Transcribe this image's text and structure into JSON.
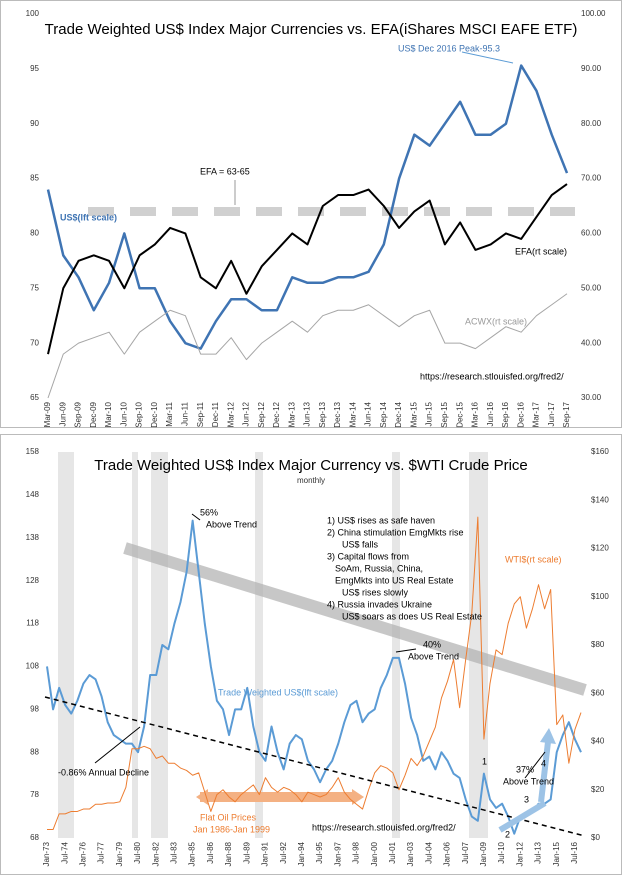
{
  "chart_data": [
    {
      "type": "line",
      "title": "Trade Weighted US$ Index Major Currencies vs. EFA(iShares MSCI EAFE ETF)",
      "categories": [
        "Mar-09",
        "Jun-09",
        "Sep-09",
        "Dec-09",
        "Mar-10",
        "Jun-10",
        "Sep-10",
        "Dec-10",
        "Mar-11",
        "Jun-11",
        "Sep-11",
        "Dec-11",
        "Mar-12",
        "Jun-12",
        "Sep-12",
        "Dec-12",
        "Mar-13",
        "Jun-13",
        "Sep-13",
        "Dec-13",
        "Mar-14",
        "Jun-14",
        "Sep-14",
        "Dec-14",
        "Mar-15",
        "Jun-15",
        "Sep-15",
        "Dec-15",
        "Mar-16",
        "Jun-16",
        "Sep-16",
        "Dec-16",
        "Mar-17",
        "Jun-17",
        "Sep-17"
      ],
      "series": [
        {
          "name": "US$",
          "color": "#3f74b3",
          "width": 2.5,
          "values": [
            84,
            78,
            76,
            73,
            75.5,
            80,
            75,
            75,
            72,
            70,
            69.5,
            72,
            74,
            74,
            73,
            73,
            76,
            75.5,
            75.5,
            76,
            76,
            76.5,
            79,
            85,
            89,
            88,
            90,
            92,
            89,
            89,
            90,
            95.3,
            93,
            89,
            85.5
          ]
        },
        {
          "name": "EFA",
          "color": "#000000",
          "width": 2,
          "axis": "y2",
          "values": [
            38,
            50,
            55,
            56,
            55,
            50,
            56,
            58,
            61,
            60,
            52,
            50,
            55,
            49,
            54,
            57,
            60,
            58,
            65,
            67,
            67,
            68,
            65,
            61,
            64,
            66,
            58,
            62,
            57,
            58,
            60,
            59,
            63,
            67,
            69
          ]
        },
        {
          "name": "ACWX",
          "color": "#a6a6a6",
          "width": 1,
          "axis": "y2",
          "values": [
            30,
            38,
            40,
            41,
            42,
            38,
            42,
            44,
            46,
            45,
            38,
            38,
            41,
            37,
            40,
            42,
            44,
            42,
            45,
            46,
            46,
            47,
            45,
            43,
            45,
            46,
            40,
            40,
            39,
            41,
            43,
            42,
            45,
            47,
            49
          ]
        }
      ],
      "ylim": [
        65,
        100
      ],
      "yticks": [
        65,
        70,
        75,
        80,
        85,
        90,
        95,
        100
      ],
      "y2lim": [
        30,
        100
      ],
      "y2ticks": [
        {
          "value": 30,
          "label": "30.00"
        },
        {
          "value": 40,
          "label": "40.00"
        },
        {
          "value": 50,
          "label": "50.00"
        },
        {
          "value": 60,
          "label": "60.00"
        },
        {
          "value": 70,
          "label": "70.00"
        },
        {
          "value": 80,
          "label": "80.00"
        },
        {
          "value": 90,
          "label": "90.00"
        },
        {
          "value": 100,
          "label": "100.00"
        }
      ],
      "reference_line": {
        "value": 64,
        "axis": "y2",
        "color": "#d0d0d0"
      },
      "annotations": [
        "US$ Dec 2016 Peak-95.3",
        "EFA = 63-65",
        "US$(lft scale)",
        "EFA(rt scale)",
        "ACWX(rt scale)",
        "https://research.stlouisfed.org/fred2/"
      ]
    },
    {
      "type": "line",
      "title": "Trade Weighted US$ Index Major Currency vs. $WTI Crude Price",
      "subtitle": "monthly",
      "categories": [
        "Jan-73",
        null,
        null,
        "Jul-74",
        null,
        null,
        "Jan-76",
        null,
        null,
        "Jul-77",
        null,
        null,
        "Jan-79",
        null,
        null,
        "Jul-80",
        null,
        null,
        "Jan-82",
        null,
        null,
        "Jul-83",
        null,
        null,
        "Jan-85",
        null,
        null,
        "Jul-86",
        null,
        null,
        "Jan-88",
        null,
        null,
        "Jul-89",
        null,
        null,
        "Jan-91",
        null,
        null,
        "Jul-92",
        null,
        null,
        "Jan-94",
        null,
        null,
        "Jul-95",
        null,
        null,
        "Jan-97",
        null,
        null,
        "Jul-98",
        null,
        null,
        "Jan-00",
        null,
        null,
        "Jul-01",
        null,
        null,
        "Jan-03",
        null,
        null,
        "Jul-04",
        null,
        null,
        "Jan-06",
        null,
        null,
        "Jul-07",
        null,
        null,
        "Jan-09",
        null,
        null,
        "Jul-10",
        null,
        null,
        "Jan-12",
        null,
        null,
        "Jul-13",
        null,
        null,
        "Jan-15",
        null,
        null,
        "Jul-16",
        null
      ],
      "series": [
        {
          "name": "Trade Weighted US$",
          "color": "#5b9bd5",
          "width": 2,
          "values": [
            108,
            98,
            103,
            99,
            97,
            100,
            104,
            106,
            105,
            101,
            95,
            92,
            91,
            90,
            90,
            88,
            94,
            106,
            106,
            113,
            112,
            118,
            123,
            130,
            142,
            130,
            118,
            108,
            100,
            98,
            92,
            98,
            98,
            103,
            94,
            88,
            86,
            94,
            88,
            84,
            90,
            92,
            91,
            86,
            84,
            81,
            84,
            86,
            90,
            95,
            99,
            100,
            95,
            97,
            98,
            103,
            106,
            110,
            110,
            104,
            96,
            92,
            86,
            87,
            84,
            88,
            86,
            83,
            82,
            77,
            73,
            72,
            83,
            77,
            75,
            76,
            73,
            69,
            73,
            74,
            74,
            76,
            76,
            77,
            88,
            92,
            95,
            91,
            88
          ]
        },
        {
          "name": "WTI$",
          "color": "#ed7d31",
          "width": 1,
          "axis": "y2",
          "values": [
            3.5,
            3.5,
            10,
            10,
            11,
            11,
            12,
            12,
            14,
            14,
            14.5,
            14.5,
            15,
            21,
            37,
            37,
            38,
            37,
            33,
            34,
            31,
            31,
            29,
            28,
            26,
            27,
            19,
            11,
            18,
            20,
            17,
            15,
            18,
            20,
            22,
            18,
            25,
            21,
            19,
            21,
            20,
            18,
            15,
            19,
            18,
            17,
            18,
            21,
            25,
            19,
            16,
            14,
            12,
            20,
            27,
            30,
            29,
            27,
            20,
            26,
            33,
            30,
            34,
            40,
            46,
            58,
            65,
            74,
            54,
            74,
            93,
            133,
            41,
            64,
            78,
            76,
            89,
            97,
            100,
            87,
            95,
            105,
            95,
            103,
            47,
            51,
            31,
            45,
            52
          ]
        }
      ],
      "ylim": [
        68,
        158
      ],
      "yticks": [
        68,
        78,
        88,
        98,
        108,
        118,
        128,
        138,
        148,
        158
      ],
      "y2lim": [
        0,
        160
      ],
      "y2ticks": [
        {
          "value": 0,
          "label": "$0"
        },
        {
          "value": 20,
          "label": "$20"
        },
        {
          "value": 40,
          "label": "$40"
        },
        {
          "value": 60,
          "label": "$60"
        },
        {
          "value": 80,
          "label": "$80"
        },
        {
          "value": 100,
          "label": "$100"
        },
        {
          "value": 120,
          "label": "$120"
        },
        {
          "value": 140,
          "label": "$140"
        },
        {
          "value": 160,
          "label": "$160"
        }
      ],
      "annotations": [
        "56%",
        "Above Trend",
        "40%",
        "Above Trend",
        "37%",
        "Above Trend",
        "1) US$ rises as safe haven",
        "2) China stimulation EmgMkts rise",
        "US$ falls",
        "3) Capital flows from",
        "SoAm, Russia, China,",
        "EmgMkts into US Real Estate",
        "US$ rises slowly",
        "4) Russia invades Ukraine",
        "US$ soars as does US Real Estate",
        "Trade Weighted US$(lft scale)",
        "WTI$(rt scale)",
        "-0.86% Annual Decline",
        "Flat Oil Prices",
        "Jan 1986-Jan 1999",
        "https://research.stlouisfed.org/fred2/",
        "1",
        "2",
        "3",
        "4"
      ]
    }
  ]
}
